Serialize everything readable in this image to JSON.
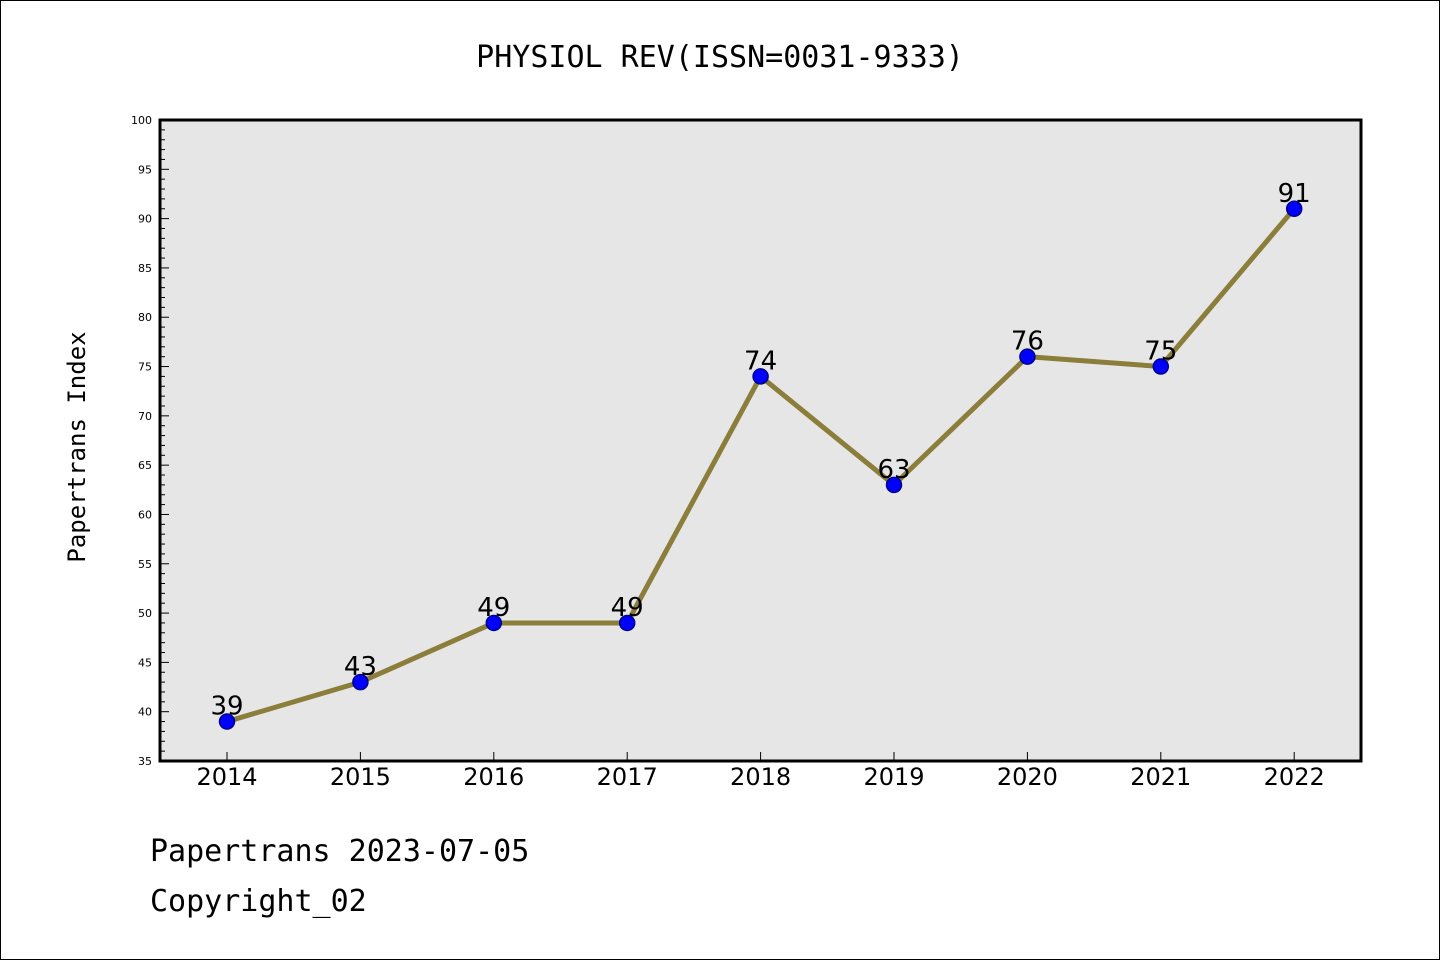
{
  "chart_data": {
    "type": "line",
    "title": "PHYSIOL REV(ISSN=0031-9333)",
    "xlabel": "",
    "ylabel": "Papertrans Index",
    "categories": [
      "2014",
      "2015",
      "2016",
      "2017",
      "2018",
      "2019",
      "2020",
      "2021",
      "2022"
    ],
    "series": [
      {
        "values": [
          39,
          43,
          49,
          49,
          74,
          63,
          76,
          75,
          91
        ]
      }
    ],
    "data_labels": [
      "39",
      "43",
      "49",
      "49",
      "74",
      "63",
      "76",
      "75",
      "91"
    ],
    "ylim": [
      35,
      100
    ],
    "yticks": [
      35,
      40,
      45,
      50,
      55,
      60,
      65,
      70,
      75,
      80,
      85,
      90,
      95,
      100
    ],
    "grid": false,
    "legend": "none",
    "colors": {
      "plot_background": "#e6e6e6",
      "line": "#8b7d3a",
      "marker": "#0000ff",
      "marker_edge": "#00008b",
      "axis": "#000000"
    }
  },
  "footer": {
    "date_line": "Papertrans 2023-07-05",
    "copyright_line": "Copyright_02"
  }
}
